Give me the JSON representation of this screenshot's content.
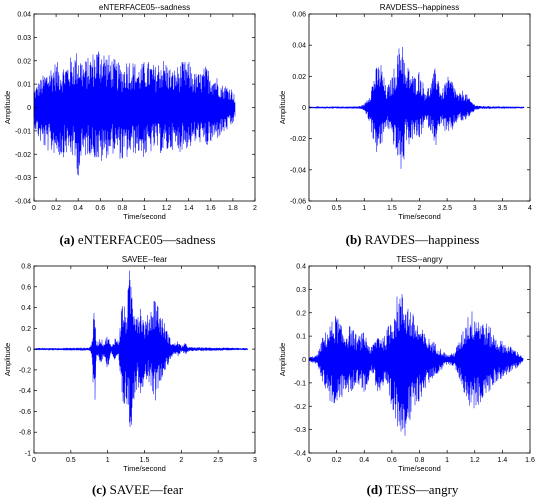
{
  "chart_data": [
    {
      "type": "line",
      "title": "eNTERFACE05--sadness",
      "xlabel": "Time/second",
      "ylabel": "Amplitude",
      "xlim": [
        0,
        2
      ],
      "ylim": [
        -0.04,
        0.04
      ],
      "xticks": [
        "0",
        "0.2",
        "0.4",
        "0.6",
        "0.8",
        "1",
        "1.2",
        "1.4",
        "1.6",
        "1.8",
        "2"
      ],
      "yticks": [
        "0.04",
        "0.03",
        "0.02",
        "0.01",
        "0",
        "-0.01",
        "-0.02",
        "-0.03",
        "-0.04"
      ],
      "color": "#0000ff",
      "series": [
        {
          "x": [
            0.0,
            0.05,
            0.1,
            0.15,
            0.2,
            0.25,
            0.3,
            0.35,
            0.4,
            0.45,
            0.5,
            0.55,
            0.6,
            0.65,
            0.7,
            0.75,
            0.8,
            0.85,
            0.9,
            0.95,
            1.0,
            1.05,
            1.1,
            1.15,
            1.2,
            1.25,
            1.3,
            1.35,
            1.4,
            1.45,
            1.5,
            1.55,
            1.6,
            1.65,
            1.7,
            1.75,
            1.8,
            1.82
          ],
          "upper": [
            0.008,
            0.012,
            0.015,
            0.018,
            0.02,
            0.018,
            0.02,
            0.023,
            0.025,
            0.02,
            0.022,
            0.025,
            0.028,
            0.024,
            0.022,
            0.02,
            0.018,
            0.022,
            0.02,
            0.018,
            0.02,
            0.02,
            0.018,
            0.022,
            0.02,
            0.016,
            0.018,
            0.02,
            0.02,
            0.015,
            0.015,
            0.018,
            0.016,
            0.014,
            0.01,
            0.01,
            0.008,
            0.004
          ],
          "lower": [
            -0.008,
            -0.015,
            -0.018,
            -0.02,
            -0.02,
            -0.022,
            -0.02,
            -0.022,
            -0.03,
            -0.022,
            -0.02,
            -0.022,
            -0.025,
            -0.022,
            -0.02,
            -0.02,
            -0.024,
            -0.022,
            -0.02,
            -0.02,
            -0.022,
            -0.02,
            -0.018,
            -0.02,
            -0.02,
            -0.018,
            -0.02,
            -0.018,
            -0.018,
            -0.016,
            -0.015,
            -0.018,
            -0.016,
            -0.014,
            -0.012,
            -0.01,
            -0.008,
            -0.004
          ]
        }
      ],
      "caption_label": "(a)",
      "caption_text": "eNTERFACE05—sadness"
    },
    {
      "type": "line",
      "title": "RAVDESS--happiness",
      "xlabel": "Time/second",
      "ylabel": "Amplitude",
      "xlim": [
        0,
        4
      ],
      "ylim": [
        -0.06,
        0.06
      ],
      "xticks": [
        "0",
        "0.5",
        "1",
        "1.5",
        "2",
        "2.5",
        "3",
        "3.5",
        "4"
      ],
      "yticks": [
        "0.06",
        "0.04",
        "0.02",
        "0",
        "-0.02",
        "-0.04",
        "-0.06"
      ],
      "color": "#0000ff",
      "series": [
        {
          "x": [
            0.0,
            0.9,
            1.0,
            1.1,
            1.2,
            1.3,
            1.4,
            1.5,
            1.6,
            1.7,
            1.75,
            1.8,
            1.9,
            2.0,
            2.1,
            2.2,
            2.3,
            2.4,
            2.5,
            2.6,
            2.7,
            2.8,
            2.9,
            3.0,
            3.1,
            3.9
          ],
          "upper": [
            0.0005,
            0.0008,
            0.002,
            0.01,
            0.025,
            0.03,
            0.012,
            0.02,
            0.035,
            0.05,
            0.02,
            0.028,
            0.02,
            0.025,
            0.012,
            0.015,
            0.028,
            0.01,
            0.02,
            0.018,
            0.008,
            0.012,
            0.006,
            0.002,
            0.001,
            0.0005
          ],
          "lower": [
            -0.0005,
            -0.0008,
            -0.002,
            -0.01,
            -0.03,
            -0.028,
            -0.012,
            -0.02,
            -0.035,
            -0.045,
            -0.02,
            -0.025,
            -0.02,
            -0.022,
            -0.01,
            -0.015,
            -0.025,
            -0.01,
            -0.02,
            -0.015,
            -0.008,
            -0.01,
            -0.006,
            -0.002,
            -0.001,
            -0.0005
          ]
        }
      ],
      "caption_label": "(b)",
      "caption_text": "RAVDES—happiness"
    },
    {
      "type": "line",
      "title": "SAVEE--fear",
      "xlabel": "Time/second",
      "ylabel": "Amplitude",
      "xlim": [
        0,
        3
      ],
      "ylim": [
        -1,
        0.8
      ],
      "xticks": [
        "0",
        "0.5",
        "1",
        "1.5",
        "2",
        "2.5",
        "3"
      ],
      "yticks": [
        "0.8",
        "0.6",
        "0.4",
        "0.2",
        "0",
        "-0.2",
        "-0.4",
        "-0.6",
        "-0.8",
        "-1"
      ],
      "color": "#0000ff",
      "series": [
        {
          "x": [
            0.0,
            0.75,
            0.78,
            0.82,
            0.85,
            0.9,
            0.95,
            1.0,
            1.05,
            1.1,
            1.15,
            1.2,
            1.25,
            1.3,
            1.35,
            1.4,
            1.45,
            1.5,
            1.55,
            1.6,
            1.65,
            1.7,
            1.75,
            1.8,
            1.85,
            1.9,
            1.95,
            2.0,
            2.05,
            2.1,
            2.9
          ],
          "upper": [
            0.01,
            0.015,
            0.05,
            0.4,
            0.05,
            0.12,
            0.06,
            0.15,
            0.02,
            0.12,
            0.08,
            0.5,
            0.35,
            0.8,
            0.55,
            0.4,
            0.45,
            0.25,
            0.35,
            0.45,
            0.55,
            0.4,
            0.3,
            0.2,
            0.1,
            0.05,
            0.08,
            0.03,
            0.06,
            0.02,
            0.01
          ],
          "lower": [
            -0.01,
            -0.015,
            -0.05,
            -0.65,
            -0.05,
            -0.15,
            -0.08,
            -0.2,
            -0.03,
            -0.15,
            -0.1,
            -0.7,
            -0.5,
            -0.85,
            -0.6,
            -0.35,
            -0.45,
            -0.3,
            -0.3,
            -0.4,
            -0.5,
            -0.35,
            -0.25,
            -0.2,
            -0.1,
            -0.05,
            -0.08,
            -0.03,
            -0.06,
            -0.02,
            -0.01
          ]
        }
      ],
      "caption_label": "(c)",
      "caption_text": "SAVEE—fear"
    },
    {
      "type": "line",
      "title": "TESS--angry",
      "xlabel": "Time/second",
      "ylabel": "Amplitude",
      "xlim": [
        0,
        1.6
      ],
      "ylim": [
        -0.4,
        0.4
      ],
      "xticks": [
        "0",
        "0.2",
        "0.4",
        "0.6",
        "0.8",
        "1",
        "1.2",
        "1.4",
        "1.6"
      ],
      "yticks": [
        "0.4",
        "0.3",
        "0.2",
        "0.1",
        "0",
        "-0.1",
        "-0.2",
        "-0.3",
        "-0.4"
      ],
      "color": "#0000ff",
      "series": [
        {
          "x": [
            0.0,
            0.06,
            0.1,
            0.15,
            0.2,
            0.25,
            0.3,
            0.35,
            0.4,
            0.45,
            0.5,
            0.55,
            0.6,
            0.65,
            0.7,
            0.75,
            0.8,
            0.85,
            0.9,
            0.95,
            1.0,
            1.05,
            1.1,
            1.15,
            1.2,
            1.25,
            1.3,
            1.35,
            1.4,
            1.45,
            1.5,
            1.55
          ],
          "upper": [
            0.01,
            0.02,
            0.1,
            0.15,
            0.2,
            0.12,
            0.15,
            0.1,
            0.12,
            0.05,
            0.12,
            0.1,
            0.2,
            0.3,
            0.28,
            0.2,
            0.15,
            0.1,
            0.08,
            0.05,
            0.02,
            0.03,
            0.1,
            0.2,
            0.22,
            0.18,
            0.15,
            0.1,
            0.08,
            0.06,
            0.04,
            0.01
          ],
          "lower": [
            -0.01,
            -0.02,
            -0.1,
            -0.18,
            -0.22,
            -0.15,
            -0.15,
            -0.1,
            -0.15,
            -0.05,
            -0.15,
            -0.12,
            -0.25,
            -0.3,
            -0.33,
            -0.25,
            -0.18,
            -0.12,
            -0.08,
            -0.05,
            -0.02,
            -0.03,
            -0.1,
            -0.2,
            -0.22,
            -0.18,
            -0.15,
            -0.1,
            -0.08,
            -0.06,
            -0.04,
            -0.01
          ]
        }
      ],
      "caption_label": "(d)",
      "caption_text": "TESS—angry"
    }
  ]
}
